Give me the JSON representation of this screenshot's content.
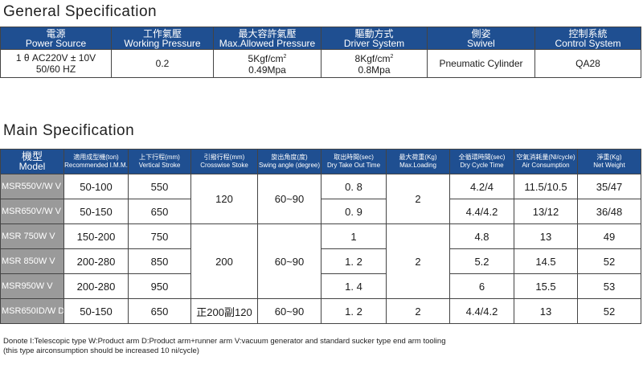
{
  "general": {
    "title": "General Specification",
    "headers": [
      {
        "cn": "電源",
        "en": "Power Source"
      },
      {
        "cn": "工作氣壓",
        "en": "Working Pressure"
      },
      {
        "cn": "最大容許氣壓",
        "en": "Max.Allowed Pressure"
      },
      {
        "cn": "驅動方式",
        "en": "Driver System"
      },
      {
        "cn": "側姿",
        "en": "Swivel"
      },
      {
        "cn": "控制系統",
        "en": "Control System"
      }
    ],
    "row": {
      "power_line1": "1 θ AC220V ± 10V",
      "power_line2": "50/60 HZ",
      "working_pressure": "0.2",
      "max_pressure_unit": "5Kgf/cm",
      "max_pressure_sup": "2",
      "max_pressure_mpa": "0.49Mpa",
      "driver_unit": "8Kgf/cm",
      "driver_sup": "2",
      "driver_mpa": "0.8Mpa",
      "swivel": "Pneumatic Cylinder",
      "control": "QA28"
    }
  },
  "main": {
    "title": "Main Specification",
    "headers": {
      "model_cn": "機型",
      "model_en": "Model",
      "imm_cn": "適用成型機(ton)",
      "imm_en": "Recommended I.M.M.",
      "vert_cn": "上下行程(mm)",
      "vert_en": "Vertical Stroke",
      "cross_cn": "引撥行程(mm)",
      "cross_en": "Crosswise Stoke",
      "swing_cn": "旋出角度(度)",
      "swing_en": "Swing angle (degree)",
      "dry_cn": "取出時間(sec)",
      "dry_en": "Dry Take Out Time",
      "load_cn": "最大荷重(Kg)",
      "load_en": "Max.Loading",
      "cycle_cn": "全循環時間(sec)",
      "cycle_en": "Dry Cycle Time",
      "air_cn": "空氣消耗量(Nl/cycle)",
      "air_en": "Air Consumption",
      "weight_cn": "淨重(Kg)",
      "weight_en": "Net Weight"
    },
    "rows": [
      {
        "model": "MSR550V/W V",
        "imm": "50-100",
        "vert": "550",
        "dry": "0. 8",
        "cycle": "4.2/4",
        "air": "11.5/10.5",
        "weight": "35/47"
      },
      {
        "model": "MSR650V/W V",
        "imm": "50-150",
        "vert": "650",
        "dry": "0. 9",
        "cycle": "4.4/4.2",
        "air": "13/12",
        "weight": "36/48"
      },
      {
        "model": "MSR 750W V",
        "imm": "150-200",
        "vert": "750",
        "dry": "1",
        "cycle": "4.8",
        "air": "13",
        "weight": "49"
      },
      {
        "model": "MSR 850W V",
        "imm": "200-280",
        "vert": "850",
        "dry": "1. 2",
        "cycle": "5.2",
        "air": "14.5",
        "weight": "52"
      },
      {
        "model": "MSR950W V",
        "imm": "200-280",
        "vert": "950",
        "dry": "1. 4",
        "cycle": "6",
        "air": "15.5",
        "weight": "53"
      },
      {
        "model": "MSR650ID/W D",
        "imm": "50-150",
        "vert": "650",
        "dry": "1. 2",
        "cycle": "4.4/4.2",
        "air": "13",
        "weight": "52"
      }
    ],
    "merged": {
      "cross_a": "120",
      "swing_a": "60~90",
      "load_a": "2",
      "cross_b": "200",
      "swing_b": "60~90",
      "load_b": "2",
      "cross_c": "正200副120",
      "swing_c": "60~90",
      "load_c": "2"
    }
  },
  "note": {
    "line1": "Donote I:Telescopic type  W:Product arm  D:Product arm+runner arm  V:vacuum generator and standard sucker type end arm tooling",
    "line2": "(this type airconsumption should be increased 10 ni/cycle)"
  }
}
